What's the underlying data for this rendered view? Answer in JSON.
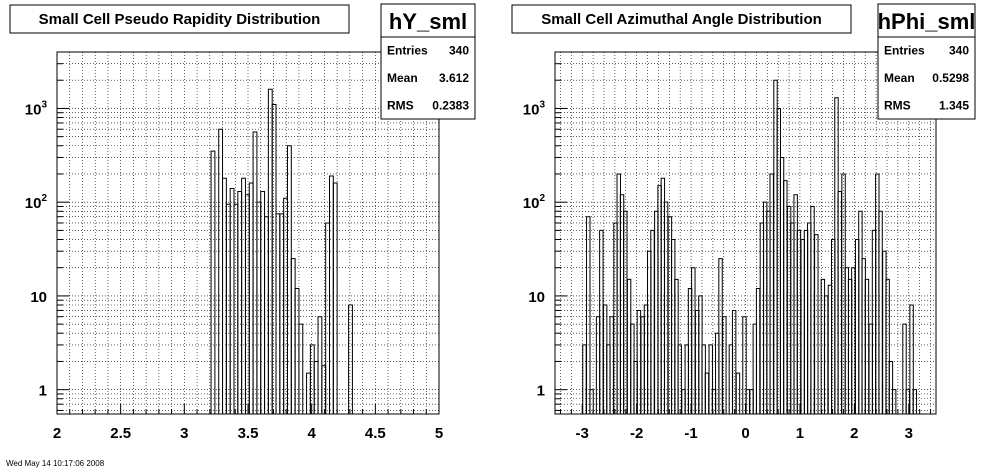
{
  "chart_data": [
    {
      "type": "histogram",
      "id": "left",
      "title": "Small Cell Pseudo Rapidity Distribution",
      "stats": {
        "name": "hY_sml",
        "rows": [
          {
            "label": "Entries",
            "value": "340"
          },
          {
            "label": "Mean",
            "value": "3.612"
          },
          {
            "label": "RMS",
            "value": "0.2383"
          }
        ]
      },
      "xlim": [
        2,
        5
      ],
      "y_scale": "log",
      "ylim": [
        0.55,
        4000
      ],
      "grid": true,
      "x_ticks": [
        {
          "v": 2,
          "label": "2"
        },
        {
          "v": 2.5,
          "label": "2.5"
        },
        {
          "v": 3,
          "label": "3"
        },
        {
          "v": 3.5,
          "label": "3.5"
        },
        {
          "v": 4,
          "label": "4"
        },
        {
          "v": 4.5,
          "label": "4.5"
        },
        {
          "v": 5,
          "label": "5"
        }
      ],
      "y_ticks": [
        {
          "v": 1,
          "label": "1"
        },
        {
          "v": 10,
          "label": "10"
        },
        {
          "v": 100,
          "label": "10²"
        },
        {
          "v": 1000,
          "label": "10³"
        }
      ],
      "bin_width": 0.03,
      "bins": [
        [
          3.21,
          350
        ],
        [
          3.24,
          0.1
        ],
        [
          3.27,
          600
        ],
        [
          3.3,
          180
        ],
        [
          3.33,
          95
        ],
        [
          3.36,
          140
        ],
        [
          3.39,
          95
        ],
        [
          3.42,
          130
        ],
        [
          3.45,
          180
        ],
        [
          3.48,
          120
        ],
        [
          3.51,
          160
        ],
        [
          3.54,
          560
        ],
        [
          3.57,
          100
        ],
        [
          3.6,
          130
        ],
        [
          3.63,
          70
        ],
        [
          3.66,
          1600
        ],
        [
          3.69,
          1100
        ],
        [
          3.72,
          75
        ],
        [
          3.75,
          75
        ],
        [
          3.78,
          110
        ],
        [
          3.81,
          400
        ],
        [
          3.84,
          25
        ],
        [
          3.87,
          12
        ],
        [
          3.9,
          5
        ],
        [
          3.93,
          0.1
        ],
        [
          3.96,
          1.5
        ],
        [
          3.99,
          3
        ],
        [
          4.02,
          2
        ],
        [
          4.05,
          6
        ],
        [
          4.08,
          1.8
        ],
        [
          4.11,
          60
        ],
        [
          4.14,
          190
        ],
        [
          4.17,
          160
        ],
        [
          4.2,
          0.1
        ],
        [
          4.23,
          0.1
        ],
        [
          4.26,
          0.1
        ],
        [
          4.29,
          8
        ]
      ]
    },
    {
      "type": "histogram",
      "id": "right",
      "title": "Small Cell Azimuthal Angle Distribution",
      "stats": {
        "name": "hPhi_sml",
        "rows": [
          {
            "label": "Entries",
            "value": "340"
          },
          {
            "label": "Mean",
            "value": "0.5298"
          },
          {
            "label": "RMS",
            "value": "1.345"
          }
        ]
      },
      "xlim": [
        -3.5,
        3.5
      ],
      "y_scale": "log",
      "ylim": [
        0.55,
        4000
      ],
      "grid": true,
      "x_ticks": [
        {
          "v": -3,
          "label": "-3"
        },
        {
          "v": -2,
          "label": "-2"
        },
        {
          "v": -1,
          "label": "-1"
        },
        {
          "v": 0,
          "label": "0"
        },
        {
          "v": 1,
          "label": "1"
        },
        {
          "v": 2,
          "label": "2"
        },
        {
          "v": 3,
          "label": "3"
        }
      ],
      "y_ticks": [
        {
          "v": 1,
          "label": "1"
        },
        {
          "v": 10,
          "label": "10"
        },
        {
          "v": 100,
          "label": "10²"
        },
        {
          "v": 1000,
          "label": "10³"
        }
      ],
      "bin_width": 0.0628,
      "bins": [
        [
          -3.05,
          0.1
        ],
        [
          -2.99,
          3
        ],
        [
          -2.92,
          70
        ],
        [
          -2.86,
          1
        ],
        [
          -2.8,
          0.1
        ],
        [
          -2.74,
          6
        ],
        [
          -2.68,
          50
        ],
        [
          -2.61,
          8
        ],
        [
          -2.55,
          3
        ],
        [
          -2.49,
          6
        ],
        [
          -2.42,
          60
        ],
        [
          -2.36,
          200
        ],
        [
          -2.3,
          120
        ],
        [
          -2.24,
          80
        ],
        [
          -2.17,
          15
        ],
        [
          -2.11,
          5
        ],
        [
          -2.05,
          2
        ],
        [
          -1.99,
          7
        ],
        [
          -1.92,
          6
        ],
        [
          -1.86,
          8
        ],
        [
          -1.8,
          30
        ],
        [
          -1.74,
          50
        ],
        [
          -1.67,
          80
        ],
        [
          -1.61,
          150
        ],
        [
          -1.55,
          180
        ],
        [
          -1.49,
          100
        ],
        [
          -1.42,
          70
        ],
        [
          -1.36,
          40
        ],
        [
          -1.3,
          15
        ],
        [
          -1.24,
          3
        ],
        [
          -1.17,
          1
        ],
        [
          -1.11,
          3
        ],
        [
          -1.05,
          12
        ],
        [
          -0.99,
          20
        ],
        [
          -0.92,
          7
        ],
        [
          -0.86,
          10
        ],
        [
          -0.8,
          3
        ],
        [
          -0.74,
          1.5
        ],
        [
          -0.67,
          3
        ],
        [
          -0.61,
          1
        ],
        [
          -0.55,
          4
        ],
        [
          -0.49,
          25
        ],
        [
          -0.42,
          6
        ],
        [
          -0.36,
          0.1
        ],
        [
          -0.3,
          3
        ],
        [
          -0.24,
          7
        ],
        [
          -0.17,
          1.5
        ],
        [
          -0.11,
          0.1
        ],
        [
          -0.05,
          6
        ],
        [
          0.01,
          1
        ],
        [
          0.08,
          1
        ],
        [
          0.14,
          5
        ],
        [
          0.2,
          12
        ],
        [
          0.27,
          60
        ],
        [
          0.33,
          100
        ],
        [
          0.39,
          80
        ],
        [
          0.45,
          200
        ],
        [
          0.52,
          2000
        ],
        [
          0.58,
          1000
        ],
        [
          0.64,
          300
        ],
        [
          0.7,
          170
        ],
        [
          0.77,
          90
        ],
        [
          0.83,
          60
        ],
        [
          0.89,
          120
        ],
        [
          0.95,
          50
        ],
        [
          1.02,
          40
        ],
        [
          1.08,
          50
        ],
        [
          1.14,
          60
        ],
        [
          1.2,
          90
        ],
        [
          1.27,
          45
        ],
        [
          1.33,
          0.1
        ],
        [
          1.39,
          15
        ],
        [
          1.45,
          10
        ],
        [
          1.52,
          13
        ],
        [
          1.58,
          40
        ],
        [
          1.64,
          1300
        ],
        [
          1.7,
          130
        ],
        [
          1.77,
          200
        ],
        [
          1.83,
          20
        ],
        [
          1.89,
          15
        ],
        [
          1.95,
          20
        ],
        [
          2.02,
          40
        ],
        [
          2.08,
          80
        ],
        [
          2.14,
          25
        ],
        [
          2.2,
          15
        ],
        [
          2.27,
          5
        ],
        [
          2.33,
          50
        ],
        [
          2.39,
          200
        ],
        [
          2.45,
          80
        ],
        [
          2.52,
          30
        ],
        [
          2.58,
          15
        ],
        [
          2.64,
          2
        ],
        [
          2.7,
          1
        ],
        [
          2.77,
          0.1
        ],
        [
          2.83,
          0.1
        ],
        [
          2.89,
          5
        ],
        [
          2.95,
          1
        ],
        [
          3.02,
          8
        ],
        [
          3.08,
          1
        ]
      ]
    }
  ],
  "footer": "Wed May 14 10:17:06 2008"
}
